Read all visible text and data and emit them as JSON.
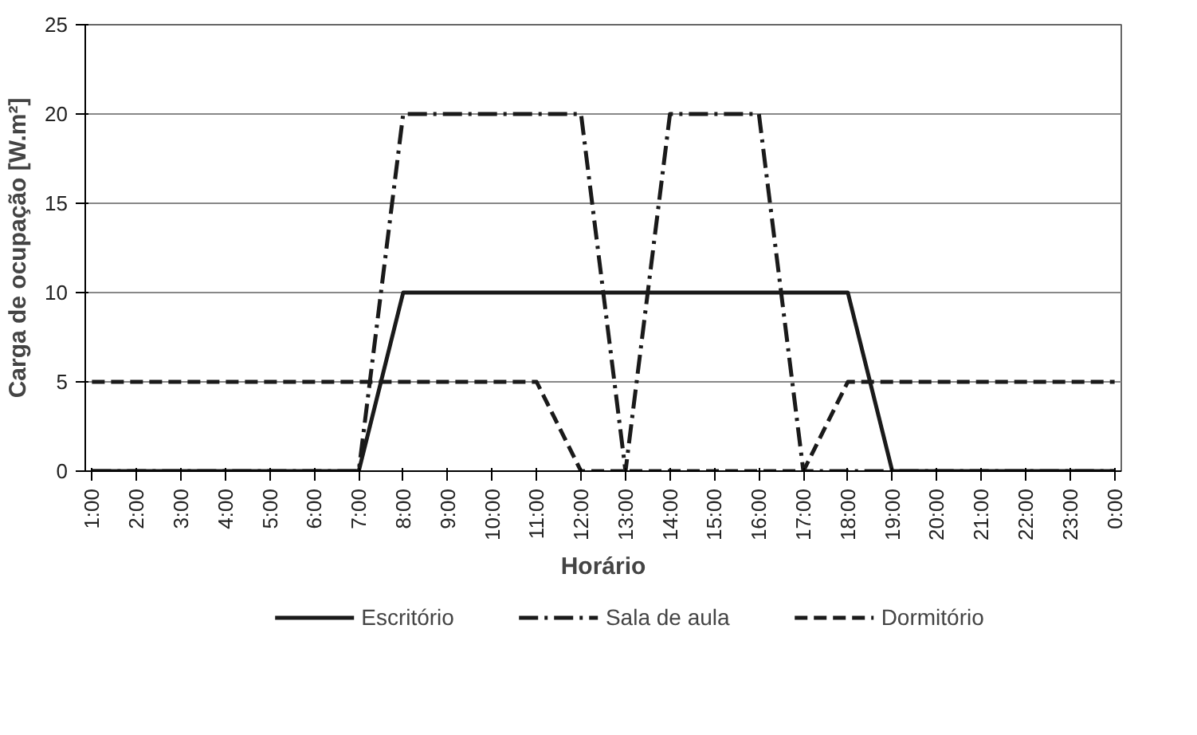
{
  "chart_data": {
    "type": "line",
    "xlabel": "Horário",
    "ylabel": "Carga de ocupação [W.m²]",
    "categories": [
      "1:00",
      "2:00",
      "3:00",
      "4:00",
      "5:00",
      "6:00",
      "7:00",
      "8:00",
      "9:00",
      "10:00",
      "11:00",
      "12:00",
      "13:00",
      "14:00",
      "15:00",
      "16:00",
      "17:00",
      "18:00",
      "19:00",
      "20:00",
      "21:00",
      "22:00",
      "23:00",
      "0:00"
    ],
    "series": [
      {
        "name": "Escritório",
        "color": "#1a1a1a",
        "line_style": "solid",
        "values": [
          0,
          0,
          0,
          0,
          0,
          0,
          0,
          10,
          10,
          10,
          10,
          10,
          10,
          10,
          10,
          10,
          10,
          10,
          0,
          0,
          0,
          0,
          0,
          0
        ]
      },
      {
        "name": "Sala de aula",
        "color": "#1a1a1a",
        "line_style": "dashdot",
        "values": [
          0,
          0,
          0,
          0,
          0,
          0,
          0,
          20,
          20,
          20,
          20,
          20,
          0,
          20,
          20,
          20,
          0,
          0,
          0,
          0,
          0,
          0,
          0,
          0
        ]
      },
      {
        "name": "Dormitório",
        "color": "#1a1a1a",
        "line_style": "dashed",
        "values": [
          5,
          5,
          5,
          5,
          5,
          5,
          5,
          5,
          5,
          5,
          5,
          0,
          0,
          0,
          0,
          0,
          0,
          5,
          5,
          5,
          5,
          5,
          5,
          5
        ]
      }
    ],
    "ylim": [
      0,
      25
    ],
    "yticks": [
      0,
      5,
      10,
      15,
      20,
      25
    ],
    "grid": "y",
    "legend": "bottom",
    "marker": "none"
  }
}
